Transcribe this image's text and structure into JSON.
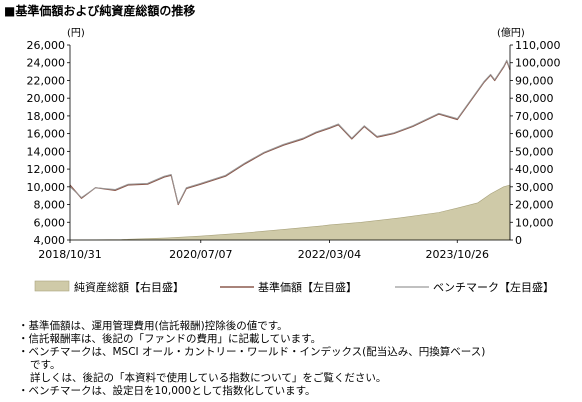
{
  "title": "■基準価額および純資産総額の推移",
  "chart_data": {
    "type": "line",
    "left_axis": {
      "unit": "(円)",
      "ylim": [
        4000,
        26000
      ],
      "ticks": [
        4000,
        6000,
        8000,
        10000,
        12000,
        14000,
        16000,
        18000,
        20000,
        22000,
        24000,
        26000
      ],
      "tick_labels": [
        "4,000",
        "6,000",
        "8,000",
        "10,000",
        "12,000",
        "14,000",
        "16,000",
        "18,000",
        "20,000",
        "22,000",
        "24,000",
        "26,000"
      ]
    },
    "right_axis": {
      "unit": "(億円)",
      "ylim": [
        0,
        110000
      ],
      "ticks": [
        0,
        10000,
        20000,
        30000,
        40000,
        50000,
        60000,
        70000,
        80000,
        90000,
        100000,
        110000
      ],
      "tick_labels": [
        "0",
        "10,000",
        "20,000",
        "30,000",
        "40,000",
        "50,000",
        "60,000",
        "70,000",
        "80,000",
        "90,000",
        "100,000",
        "110,000"
      ]
    },
    "x_tick_labels": [
      "2018/10/31",
      "2020/07/07",
      "2022/03/04",
      "2023/10/26"
    ],
    "x_range": [
      "2018/10/31",
      "2024/06/30"
    ],
    "grid": false,
    "legend_position": "bottom",
    "series": [
      {
        "name": "純資産総額【右目盛】",
        "type": "area",
        "axis": "right",
        "color": "#cfcaa8",
        "points": [
          [
            "2018/10/31",
            0
          ],
          [
            "2019/06/30",
            300
          ],
          [
            "2020/01/31",
            1200
          ],
          [
            "2020/07/07",
            2200
          ],
          [
            "2021/01/31",
            4000
          ],
          [
            "2021/07/31",
            6000
          ],
          [
            "2022/01/31",
            8000
          ],
          [
            "2022/03/04",
            8500
          ],
          [
            "2022/07/31",
            10000
          ],
          [
            "2023/01/31",
            12500
          ],
          [
            "2023/07/31",
            15500
          ],
          [
            "2023/10/26",
            18000
          ],
          [
            "2024/01/31",
            21000
          ],
          [
            "2024/03/31",
            26000
          ],
          [
            "2024/05/31",
            30000
          ],
          [
            "2024/06/30",
            31000
          ]
        ]
      },
      {
        "name": "基準価額【左目盛】",
        "type": "line",
        "axis": "left",
        "color": "#8c5a4e",
        "points": [
          [
            "2018/10/31",
            10200
          ],
          [
            "2018/12/24",
            8700
          ],
          [
            "2019/02/28",
            9900
          ],
          [
            "2019/05/31",
            9600
          ],
          [
            "2019/07/31",
            10200
          ],
          [
            "2019/10/31",
            10300
          ],
          [
            "2020/01/17",
            11100
          ],
          [
            "2020/02/19",
            11300
          ],
          [
            "2020/03/23",
            8000
          ],
          [
            "2020/04/30",
            9800
          ],
          [
            "2020/07/07",
            10300
          ],
          [
            "2020/10/31",
            11200
          ],
          [
            "2021/01/31",
            12600
          ],
          [
            "2021/04/30",
            13800
          ],
          [
            "2021/07/31",
            14700
          ],
          [
            "2021/10/31",
            15400
          ],
          [
            "2021/12/31",
            16100
          ],
          [
            "2022/03/04",
            16600
          ],
          [
            "2022/04/15",
            17000
          ],
          [
            "2022/06/17",
            15400
          ],
          [
            "2022/08/15",
            16800
          ],
          [
            "2022/10/14",
            15600
          ],
          [
            "2022/12/31",
            16000
          ],
          [
            "2023/03/31",
            16800
          ],
          [
            "2023/07/31",
            18200
          ],
          [
            "2023/10/26",
            17600
          ],
          [
            "2023/12/31",
            19800
          ],
          [
            "2024/02/29",
            21800
          ],
          [
            "2024/03/31",
            22600
          ],
          [
            "2024/04/19",
            22000
          ],
          [
            "2024/05/31",
            23500
          ],
          [
            "2024/06/15",
            24200
          ],
          [
            "2024/06/30",
            23200
          ]
        ]
      },
      {
        "name": "ベンチマーク【左目盛】",
        "type": "line",
        "axis": "left",
        "color": "#9a9a9a",
        "points": [
          [
            "2018/10/31",
            10000
          ],
          [
            "2018/12/24",
            8800
          ],
          [
            "2019/02/28",
            9900
          ],
          [
            "2019/05/31",
            9700
          ],
          [
            "2019/07/31",
            10300
          ],
          [
            "2019/10/31",
            10400
          ],
          [
            "2020/01/17",
            11200
          ],
          [
            "2020/02/19",
            11400
          ],
          [
            "2020/03/23",
            8100
          ],
          [
            "2020/04/30",
            9900
          ],
          [
            "2020/07/07",
            10400
          ],
          [
            "2020/10/31",
            11300
          ],
          [
            "2021/01/31",
            12700
          ],
          [
            "2021/04/30",
            13900
          ],
          [
            "2021/07/31",
            14800
          ],
          [
            "2021/10/31",
            15500
          ],
          [
            "2021/12/31",
            16200
          ],
          [
            "2022/03/04",
            16700
          ],
          [
            "2022/04/15",
            17100
          ],
          [
            "2022/06/17",
            15500
          ],
          [
            "2022/08/15",
            16900
          ],
          [
            "2022/10/14",
            15700
          ],
          [
            "2022/12/31",
            16100
          ],
          [
            "2023/03/31",
            16900
          ],
          [
            "2023/07/31",
            18300
          ],
          [
            "2023/10/26",
            17700
          ],
          [
            "2023/12/31",
            19900
          ],
          [
            "2024/02/29",
            21900
          ],
          [
            "2024/03/31",
            22700
          ],
          [
            "2024/04/19",
            22100
          ],
          [
            "2024/05/31",
            23600
          ],
          [
            "2024/06/15",
            24300
          ],
          [
            "2024/06/30",
            23300
          ]
        ]
      }
    ]
  },
  "notes": [
    "・基準価額は、運用管理費用(信託報酬)控除後の値です。",
    "・信託報酬率は、後記の「ファンドの費用」に記載しています。",
    "・ベンチマークは、MSCI オール・カントリー・ワールド・インデックス(配当込み、円換算ベース)",
    "です。",
    "詳しくは、後記の「本資料で使用している指数について」をご覧ください。",
    "・ベンチマークは、設定日を10,000として指数化しています。"
  ]
}
